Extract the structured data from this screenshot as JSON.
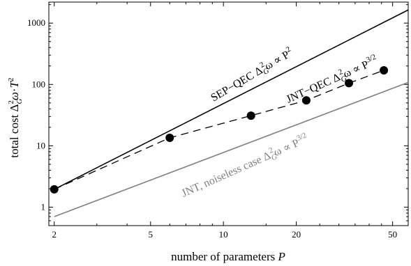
{
  "chart_data": {
    "type": "scatter",
    "xlabel": "number of parameters P",
    "ylabel": "total cost Δ_G²ω·T²",
    "xscale": "log",
    "yscale": "log",
    "xlim": [
      1.9,
      58
    ],
    "ylim": [
      0.5,
      2200
    ],
    "x_ticks_major": [
      2,
      5,
      10,
      20,
      50
    ],
    "x_tick_labels": [
      "2",
      "5",
      "10",
      "20",
      "50"
    ],
    "y_ticks_major": [
      1,
      10,
      100,
      1000
    ],
    "y_tick_labels": [
      "1",
      "10",
      "100",
      "1000"
    ],
    "grid": false,
    "series": [
      {
        "name": "SEP–QEC Δ_G²ω ∝ P²",
        "style": "solid",
        "color": "#000000",
        "x": [
          2,
          58
        ],
        "y": [
          1.95,
          1640
        ]
      },
      {
        "name": "JNT–QEC Δ_G²ω ∝ P^{3/2}",
        "style": "dashed",
        "color": "#000000",
        "x": [
          2,
          6,
          13,
          22,
          33,
          46
        ],
        "y": [
          1.95,
          13.5,
          31,
          55,
          105,
          170
        ]
      },
      {
        "name": "JNT, noiseless case Δ_G²ω ∝ P^{3/2}",
        "style": "solid",
        "color": "#808080",
        "x": [
          2,
          58
        ],
        "y": [
          0.7,
          108
        ]
      }
    ],
    "points": {
      "x": [
        2,
        6,
        13,
        22,
        33,
        46
      ],
      "y": [
        1.95,
        13.5,
        31,
        55,
        105,
        170
      ]
    },
    "annotations": [
      {
        "text_prefix": "SEP−QEC Δ",
        "text_suffix": "ω ∝ P",
        "superscript": "2",
        "color": "#000000"
      },
      {
        "text_prefix": "JNT−QEC Δ",
        "text_suffix": "ω ∝ P",
        "superscript": "3/2",
        "color": "#000000"
      },
      {
        "text_prefix": "JNT, noiseless case Δ",
        "text_suffix": "ω ∝ P",
        "superscript": "3/2",
        "color": "#808080"
      }
    ]
  }
}
